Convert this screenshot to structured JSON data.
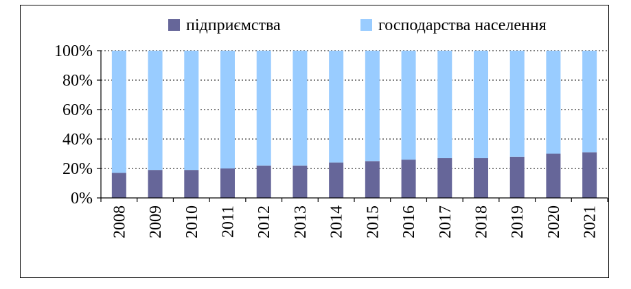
{
  "chart_data": {
    "type": "bar",
    "stacked": true,
    "percent_stacked": true,
    "categories": [
      "2008",
      "2009",
      "2010",
      "2011",
      "2012",
      "2013",
      "2014",
      "2015",
      "2016",
      "2017",
      "2018",
      "2019",
      "2020",
      "2021"
    ],
    "series": [
      {
        "name": "підприємства",
        "color": "#666699",
        "values": [
          17,
          19,
          19,
          20,
          22,
          22,
          24,
          25,
          26,
          27,
          27,
          28,
          30,
          31
        ]
      },
      {
        "name": "господарства населення",
        "color": "#99CCFF",
        "values": [
          83,
          81,
          81,
          80,
          78,
          78,
          76,
          75,
          74,
          73,
          73,
          72,
          70,
          69
        ]
      }
    ],
    "yticks": [
      "0%",
      "20%",
      "40%",
      "60%",
      "80%",
      "100%"
    ],
    "ylim": [
      0,
      100
    ],
    "grid": "dotted horizontal",
    "legend": "top"
  }
}
